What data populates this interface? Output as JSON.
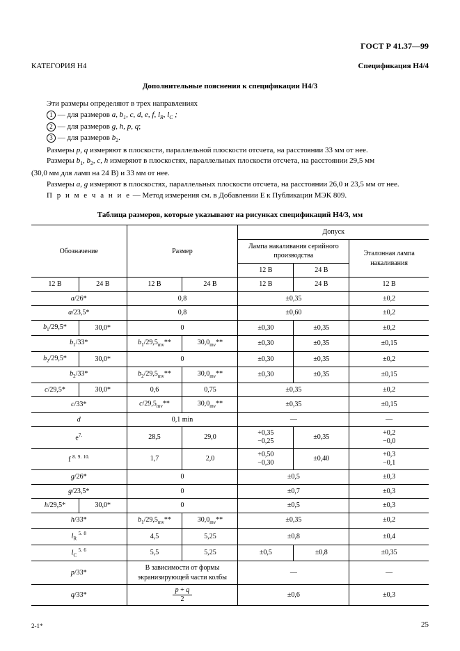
{
  "doc_id": "ГОСТ Р 41.37—99",
  "header": {
    "category": "КАТЕГОРИЯ Н4",
    "spec": "Спецификация Н4/4"
  },
  "subhead": "Дополнительные пояснения к спецификации Н4/3",
  "intro": {
    "line1": "Эти размеры определяют в трех направлениях",
    "d1_pre": " — для размеров ",
    "d1_syms": "a, b₁, c, d, e, f, lR, lC ;",
    "d2": " — для размеров g, h, p, q;",
    "d3_pre": " — для размеров ",
    "d3_syms": "b₂.",
    "p_pq": "Размеры p, q измеряют в плоскости, параллельной плоскости отсчета, на расстоянии 33 мм от нее.",
    "p_b": "Размеры b₁, b₂, c, h измеряют в плоскостях, параллельных плоскости отсчета, на расстоянии 29,5 мм (30,0 мм для ламп на 24 В) и 33 мм от нее.",
    "p_ag": "Размеры a, g измеряют в плоскостях, параллельных плоскости отсчета, на расстоянии 26,0 и 23,5 мм от нее.",
    "note_label": "П р и м е ч а н и е",
    "note_text": " — Метод измерения см. в Добавлении E к Публикации МЭК 809."
  },
  "table_caption": "Таблица размеров, которые указывают на рисунках спецификаций Н4/3, мм",
  "hdr": {
    "designation": "Обозначение",
    "size": "Размер",
    "tolerance": "Допуск",
    "mass_lamp": "Лампа накаливания серийного производства",
    "ref_lamp": "Эталонная лампа накаливания",
    "v12": "12 В",
    "v24": "24 В"
  },
  "rows": [
    {
      "des": [
        "a/26*"
      ],
      "size": [
        "0,8"
      ],
      "tol12": "±0,35",
      "tol24": "",
      "ref": "±0,2"
    },
    {
      "des": [
        "a/23,5*"
      ],
      "size": [
        "0,8"
      ],
      "tol12": "±0,60",
      "tol24": "",
      "ref": "±0,2"
    },
    {
      "des": [
        "b₁/29,5*",
        "30,0*"
      ],
      "size": [
        "0"
      ],
      "tol12": "±0,30",
      "tol24": "±0,35",
      "ref": "±0,2"
    },
    {
      "des": [
        "b₁/33*"
      ],
      "size": [
        "b₁/29,5mv**",
        "30,0mv**"
      ],
      "tol12": "±0,30",
      "tol24": "±0,35",
      "ref": "±0,15"
    },
    {
      "des": [
        "b₂/29,5*",
        "30,0*"
      ],
      "size": [
        "0"
      ],
      "tol12": "±0,30",
      "tol24": "±0,35",
      "ref": "±0,2"
    },
    {
      "des": [
        "b₂/33*"
      ],
      "size": [
        "b₂/29,5mv**",
        "30,0mv**"
      ],
      "tol12": "±0,30",
      "tol24": "±0,35",
      "ref": "±0,15"
    },
    {
      "des": [
        "c/29,5*",
        "30,0*"
      ],
      "size": [
        "0,6",
        "0,75"
      ],
      "tol12": "±0,35",
      "tol24": "",
      "ref": "±0,2"
    },
    {
      "des": [
        "c/33*"
      ],
      "size": [
        "c/29,5mv**",
        "30,0mv**"
      ],
      "tol12": "±0,35",
      "tol24": "",
      "ref": "±0,15"
    },
    {
      "des": [
        "d"
      ],
      "size": [
        "0,1 min"
      ],
      "tol12": "—",
      "tol24": "",
      "ref": "—"
    },
    {
      "des": [
        "e⁷ˑ"
      ],
      "size": [
        "28,5",
        "29,0"
      ],
      "tol12": "+0,35\n−0,25",
      "tol24": "±0,35",
      "ref": "+0,2\n−0,0"
    },
    {
      "des": [
        "f ⁸ˑ ⁹ˑ ¹⁰ˑ"
      ],
      "size": [
        "1,7",
        "2,0"
      ],
      "tol12": "+0,50\n−0,30",
      "tol24": "±0,40",
      "ref": "+0,3\n−0,1"
    },
    {
      "des": [
        "g/26*"
      ],
      "size": [
        "0"
      ],
      "tol12": "±0,5",
      "tol24": "",
      "ref": "±0,3"
    },
    {
      "des": [
        "g/23,5*"
      ],
      "size": [
        "0"
      ],
      "tol12": "±0,7",
      "tol24": "",
      "ref": "±0,3"
    },
    {
      "des": [
        "h/29,5*",
        "30,0*"
      ],
      "size": [
        "0"
      ],
      "tol12": "±0,5",
      "tol24": "",
      "ref": "±0,3"
    },
    {
      "des": [
        "h/33*"
      ],
      "size": [
        "b₁/29,5mv**",
        "30,0mv**"
      ],
      "tol12": "±0,35",
      "tol24": "",
      "ref": "±0,2"
    },
    {
      "des": [
        "lR ⁵ˑ ⁸"
      ],
      "size": [
        "4,5",
        "5,25"
      ],
      "tol12": "±0,8",
      "tol24": "",
      "ref": "±0,4"
    },
    {
      "des": [
        "lC ⁵ˑ ⁶"
      ],
      "size": [
        "5,5",
        "5,25"
      ],
      "tol12": "±0,5",
      "tol24": "±0,8",
      "ref": "±0,35"
    },
    {
      "des": [
        "p/33*"
      ],
      "size": [
        "В зависимости от формы экранизирующей части колбы"
      ],
      "tol12": "—",
      "tol24": "",
      "ref": "—"
    },
    {
      "des": [
        "q/33*"
      ],
      "size": [
        "FRAC_PQ"
      ],
      "tol12": "±0,6",
      "tol24": "",
      "ref": "±0,3"
    }
  ],
  "footer": {
    "left": "2-1*",
    "page": "25"
  },
  "colors": {
    "text": "#000000",
    "bg": "#ffffff",
    "border": "#000000"
  }
}
